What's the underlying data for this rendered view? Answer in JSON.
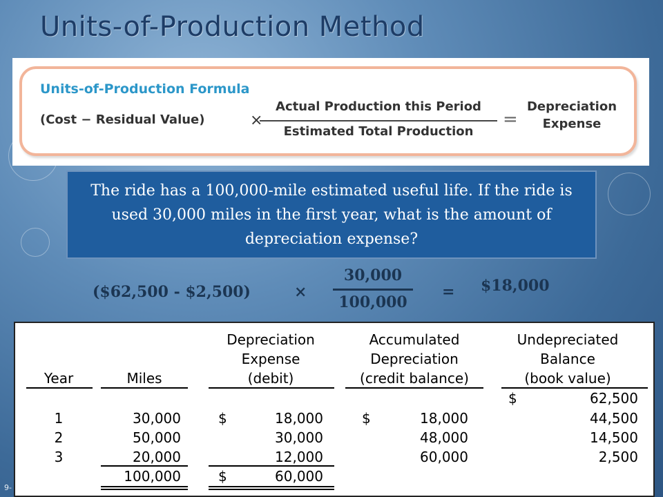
{
  "slide": {
    "title": "Units-of-Production Method",
    "page_number": "9-"
  },
  "formula": {
    "heading": "Units-of-Production Formula",
    "left_term": "(Cost − Residual Value)",
    "times": "×",
    "numerator": "Actual Production this Period",
    "denominator": "Estimated Total Production",
    "equals": "=",
    "result_line1": "Depreciation",
    "result_line2": "Expense"
  },
  "question": {
    "text": "The ride has a 100,000-mile estimated useful life.  If the ride is used 30,000 miles in the first year, what is the amount of depreciation expense?"
  },
  "calculation": {
    "base": "($62,500 - $2,500)",
    "times": "×",
    "numerator": "30,000",
    "denominator": "100,000",
    "equals": "=",
    "result": "$18,000"
  },
  "table": {
    "headers": {
      "year": "Year",
      "miles": "Miles",
      "dep_line1": "Depreciation",
      "dep_line2": "Expense",
      "dep_line3": "(debit)",
      "acc_line1": "Accumulated",
      "acc_line2": "Depreciation",
      "acc_line3": "(credit balance)",
      "und_line1": "Undepreciated",
      "und_line2": "Balance",
      "und_line3": "(book value)"
    },
    "opening": {
      "dollar": "$",
      "balance": "62,500"
    },
    "rows": [
      {
        "year": "1",
        "miles": "30,000",
        "dep_dollar": "$",
        "dep": "18,000",
        "acc_dollar": "$",
        "acc": "18,000",
        "balance": "44,500"
      },
      {
        "year": "2",
        "miles": "50,000",
        "dep_dollar": "",
        "dep": "30,000",
        "acc_dollar": "",
        "acc": "48,000",
        "balance": "14,500"
      },
      {
        "year": "3",
        "miles": "20,000",
        "dep_dollar": "",
        "dep": "12,000",
        "acc_dollar": "",
        "acc": "60,000",
        "balance": "2,500"
      }
    ],
    "totals": {
      "miles": "100,000",
      "dep_dollar": "$",
      "dep": "60,000"
    }
  }
}
